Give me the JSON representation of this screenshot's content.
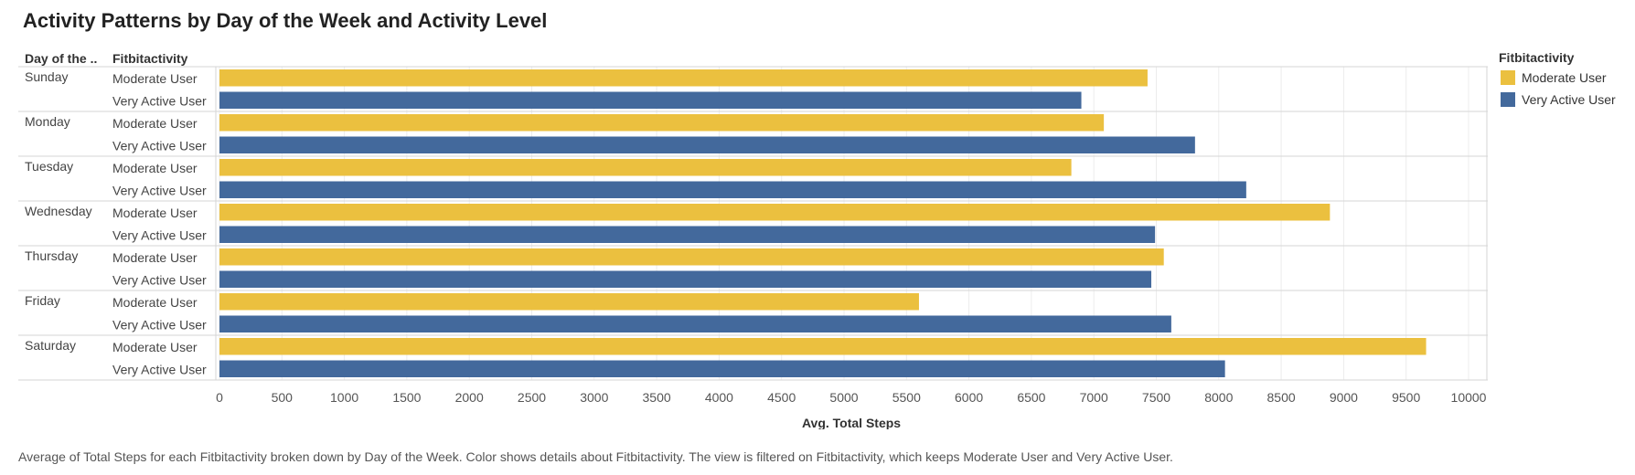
{
  "chart_data": {
    "type": "bar",
    "orientation": "horizontal",
    "title": "Activity Patterns by Day of the Week and Activity Level",
    "row_headers": [
      "Day of the ..",
      "Fitbitactivity"
    ],
    "days": [
      "Sunday",
      "Monday",
      "Tuesday",
      "Wednesday",
      "Thursday",
      "Friday",
      "Saturday"
    ],
    "series": [
      {
        "name": "Moderate User",
        "color": "#EBC03F",
        "values": [
          7430,
          7080,
          6820,
          8890,
          7560,
          5600,
          9660
        ]
      },
      {
        "name": "Very Active User",
        "color": "#43699C",
        "values": [
          6900,
          7810,
          8220,
          7490,
          7460,
          7620,
          8050
        ]
      }
    ],
    "xlabel": "Avg. Total Steps",
    "xlim": [
      0,
      10000
    ],
    "xticks": [
      0,
      500,
      1000,
      1500,
      2000,
      2500,
      3000,
      3500,
      4000,
      4500,
      5000,
      5500,
      6000,
      6500,
      7000,
      7500,
      8000,
      8500,
      9000,
      9500,
      10000
    ],
    "grid": true,
    "legend": {
      "title": "Fitbitactivity",
      "position": "right"
    }
  },
  "footnote": "Average of Total Steps for each Fitbitactivity broken down by Day of the Week.  Color shows details about Fitbitactivity. The view is filtered on Fitbitactivity, which keeps Moderate User and Very Active User."
}
